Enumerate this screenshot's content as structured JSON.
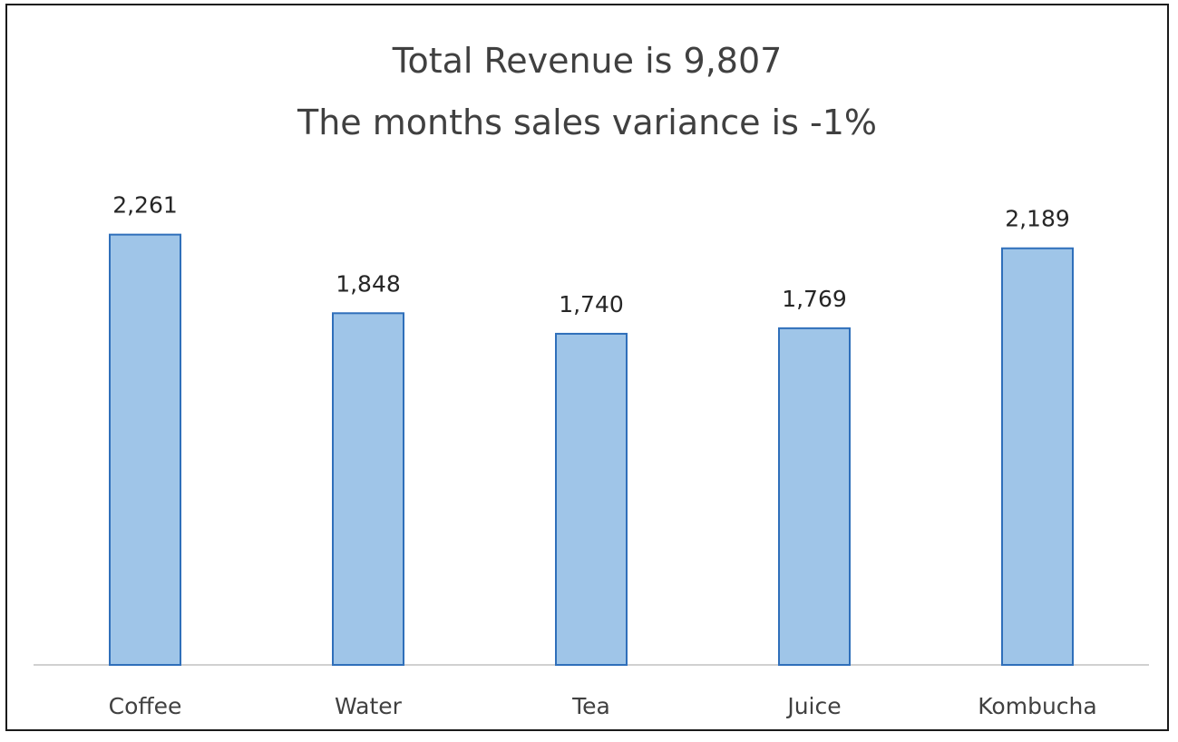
{
  "chart_data": {
    "type": "bar",
    "title": "Total Revenue is 9,807",
    "subtitle": "The months sales variance is -1%",
    "categories": [
      "Coffee",
      "Water",
      "Tea",
      "Juice",
      "Kombucha"
    ],
    "values": [
      2261,
      1848,
      1740,
      1769,
      2189
    ],
    "data_labels": [
      "2,261",
      "1,848",
      "1,740",
      "1,769",
      "2,189"
    ],
    "xlabel": "",
    "ylabel": "",
    "ylim": [
      0,
      2600
    ],
    "grid": false,
    "legend": "none",
    "colors": {
      "bar_fill": "#9fc5e8",
      "bar_border": "#2f6fba",
      "axis": "#d0d0d0",
      "text": "#404040"
    }
  }
}
